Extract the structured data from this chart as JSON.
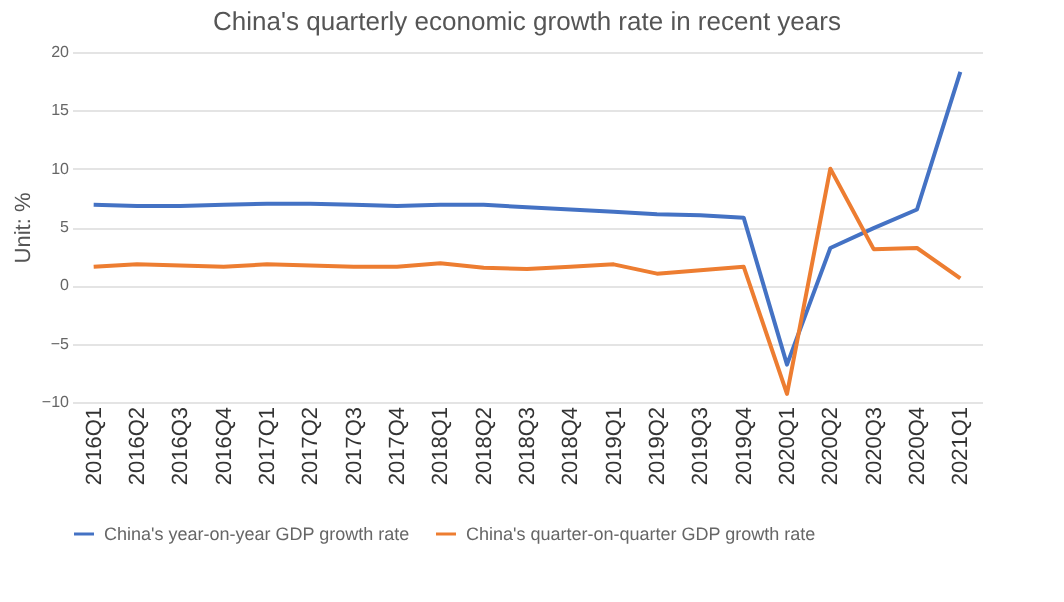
{
  "chart_data": {
    "type": "line",
    "title": "China's quarterly economic growth rate in recent years",
    "ylabel": "Unit: %",
    "categories": [
      "2016Q1",
      "2016Q2",
      "2016Q3",
      "2016Q4",
      "2017Q1",
      "2017Q2",
      "2017Q3",
      "2017Q4",
      "2018Q1",
      "2018Q2",
      "2018Q3",
      "2018Q4",
      "2019Q1",
      "2019Q2",
      "2019Q3",
      "2019Q4",
      "2020Q1",
      "2020Q2",
      "2020Q3",
      "2020Q4",
      "2021Q1"
    ],
    "series": [
      {
        "name": "China's year-on-year GDP growth rate",
        "color": "#4472c4",
        "values": [
          6.9,
          6.8,
          6.8,
          6.9,
          7.0,
          7.0,
          6.9,
          6.8,
          6.9,
          6.9,
          6.7,
          6.5,
          6.3,
          6.1,
          6.0,
          5.8,
          -6.8,
          3.2,
          4.9,
          6.5,
          18.3
        ]
      },
      {
        "name": "China's quarter-on-quarter GDP growth rate",
        "color": "#ed7d31",
        "values": [
          1.6,
          1.8,
          1.7,
          1.6,
          1.8,
          1.7,
          1.6,
          1.6,
          1.9,
          1.5,
          1.4,
          1.6,
          1.8,
          1.0,
          1.3,
          1.6,
          -9.3,
          10.0,
          3.1,
          3.2,
          0.6
        ]
      }
    ],
    "ylim": [
      -10,
      20
    ],
    "yticks": [
      -10,
      -5,
      0,
      5,
      10,
      15,
      20
    ],
    "grid": "y",
    "legend": "bottom",
    "marker": "none",
    "line_style": "solid"
  }
}
